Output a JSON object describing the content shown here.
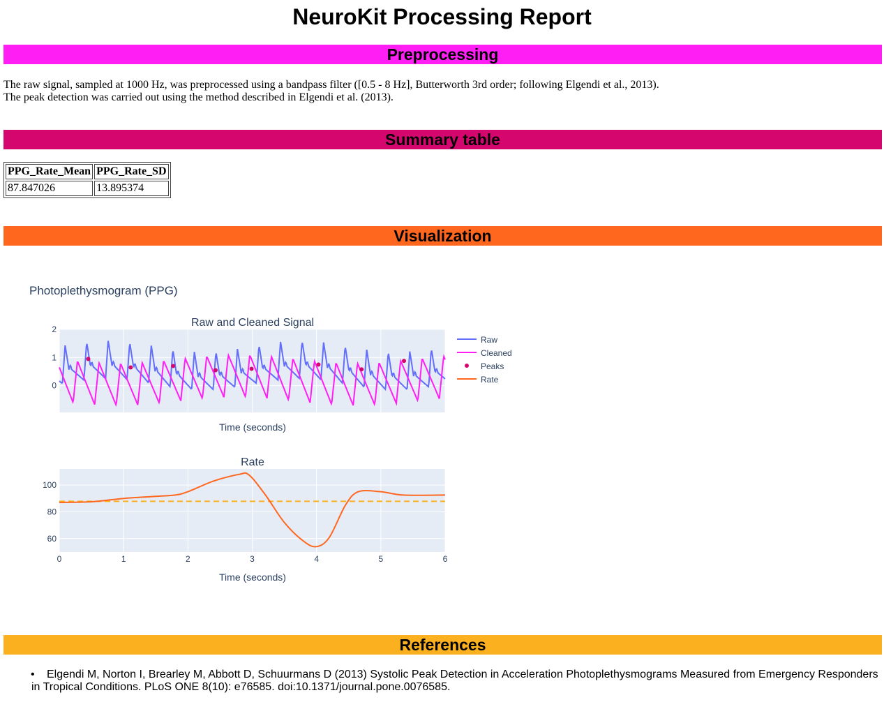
{
  "page": {
    "title": "NeuroKit Processing Report"
  },
  "sections": {
    "preprocessing": {
      "heading": "Preprocessing",
      "color": "#ff1ff5",
      "line1": "The raw signal, sampled at 1000 Hz, was preprocessed using a bandpass filter ([0.5 - 8 Hz], Butterworth 3rd order; following Elgendi et al., 2013).",
      "line2": "The peak detection was carried out using the method described in Elgendi et al. (2013)."
    },
    "summary": {
      "heading": "Summary table",
      "color": "#d5076f",
      "columns": [
        "PPG_Rate_Mean",
        "PPG_Rate_SD"
      ],
      "values": [
        "87.847026",
        "13.895374"
      ]
    },
    "visualization": {
      "heading": "Visualization",
      "color": "#ff671f"
    },
    "references": {
      "heading": "References",
      "color": "#fbb11f",
      "items": [
        "Elgendi M, Norton I, Brearley M, Abbott D, Schuurmans D (2013) Systolic Peak Detection in Acceleration Photoplethysmograms Measured from Emergency Responders in Tropical Conditions. PLoS ONE 8(10): e76585. doi:10.1371/journal.pone.0076585."
      ]
    }
  },
  "figure": {
    "title": "Photoplethysmogram (PPG)"
  },
  "chart_data": [
    {
      "type": "line",
      "title": "Raw and Cleaned Signal",
      "xlabel": "Time (seconds)",
      "ylabel": "",
      "xlim": [
        0,
        6
      ],
      "ylim": [
        -0.95,
        2.0
      ],
      "yticks": [
        0,
        1,
        2
      ],
      "grid": true,
      "legend": "right",
      "peak_times": [
        0.45,
        1.11,
        1.77,
        2.43,
        2.99,
        4.03,
        4.7,
        5.36
      ],
      "series": [
        {
          "name": "Raw",
          "color": "#636efa",
          "kind": "line"
        },
        {
          "name": "Cleaned",
          "color": "#ff1ff5",
          "kind": "line"
        },
        {
          "name": "Peaks",
          "color": "#d5076f",
          "kind": "markers",
          "values": [
            0.95,
            0.65,
            0.7,
            0.55,
            0.6,
            0.75,
            0.58,
            0.88
          ]
        },
        {
          "name": "Rate",
          "color": "#ff671f",
          "kind": "line"
        }
      ]
    },
    {
      "type": "line",
      "title": "Rate",
      "xlabel": "Time (seconds)",
      "ylabel": "",
      "xlim": [
        0,
        6
      ],
      "ylim": [
        50,
        112
      ],
      "xticks": [
        0,
        1,
        2,
        3,
        4,
        5,
        6
      ],
      "yticks": [
        60,
        80,
        100
      ],
      "grid": true,
      "mean": 87.847026,
      "mean_color": "#fbb11f",
      "series": [
        {
          "name": "Rate",
          "color": "#ff671f",
          "x": [
            0,
            0.5,
            1.0,
            1.5,
            1.8,
            2.0,
            2.4,
            2.8,
            2.95,
            3.2,
            3.5,
            3.8,
            4.0,
            4.2,
            4.45,
            4.65,
            5.0,
            5.35,
            6.0
          ],
          "y": [
            87,
            87.5,
            90,
            91.5,
            92.5,
            95,
            103,
            108,
            107.5,
            93,
            72,
            58,
            54,
            61,
            85,
            95,
            95,
            92.5,
            92.5
          ]
        }
      ]
    }
  ]
}
